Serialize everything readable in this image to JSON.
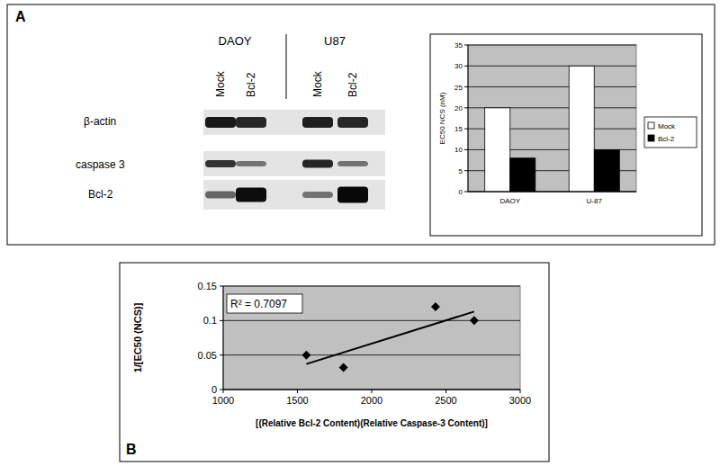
{
  "panel_labels": [
    "A",
    "B"
  ],
  "blot": {
    "cell_lines": [
      "DAOY",
      "U87"
    ],
    "lanes": [
      "Mock",
      "Bcl-2",
      "Mock",
      "Bcl-2"
    ],
    "rows": [
      "β-actin",
      "caspase 3",
      "Bcl-2"
    ]
  },
  "chart_data": [
    {
      "type": "bar",
      "y_label": "EC50 NCS (nM)",
      "categories": [
        "DAOY",
        "U-87"
      ],
      "series": [
        {
          "name": "Mock",
          "color": "#ffffff",
          "values": [
            20,
            30
          ]
        },
        {
          "name": "Bcl-2",
          "color": "#000000",
          "values": [
            8,
            10
          ]
        }
      ],
      "ylim": [
        0,
        35
      ],
      "yticks": [
        0,
        5,
        10,
        15,
        20,
        25,
        30,
        35
      ],
      "grid": true,
      "legend": "right"
    },
    {
      "type": "scatter",
      "x_label": "[(Relative Bcl-2 Content)(Relative Caspase-3 Content)]",
      "y_label": "1/[EC50 (NCS)]",
      "annotation": "R² = 0.7097",
      "series": [
        {
          "type": "scatter",
          "marker": "diamond",
          "color": "#000000",
          "x": [
            1560,
            1810,
            2430,
            2690
          ],
          "values": [
            0.05,
            0.032,
            0.12,
            0.1
          ]
        },
        {
          "type": "line",
          "color": "#000000",
          "line_style": "solid",
          "x": [
            1560,
            2690
          ],
          "values": [
            0.037,
            0.113
          ]
        }
      ],
      "xlim": [
        1000,
        3000
      ],
      "xticks": [
        1000,
        1500,
        2000,
        2500,
        3000
      ],
      "ylim": [
        0,
        0.15
      ],
      "yticks": [
        0,
        0.05,
        0.1,
        0.15
      ],
      "grid": true
    }
  ]
}
